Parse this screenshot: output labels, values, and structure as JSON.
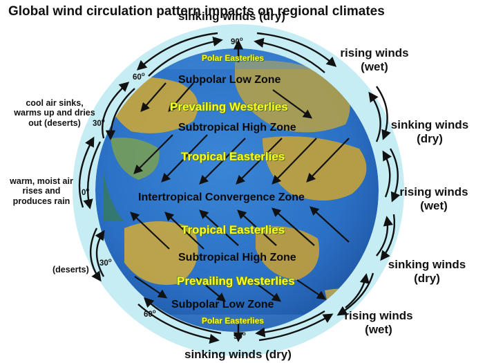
{
  "title": "Global wind circulation pattern impacts on regional climates",
  "latitudes": {
    "top_pole": "90",
    "bottom_pole": "90",
    "north_60": "60",
    "north_30": "30",
    "equator": "0",
    "south_30": "30",
    "south_60": "60",
    "degree_symbol": "o"
  },
  "zones": {
    "subpolar_low_north": "Subpolar Low Zone",
    "subtropical_high_north": "Subtropical High Zone",
    "itcz": "Intertropical Convergence Zone",
    "subtropical_high_south": "Subtropical High Zone",
    "subpolar_low_south": "Subpolar Low Zone"
  },
  "winds": {
    "polar_easterlies_north": "Polar Easterlies",
    "prevailing_westerlies_north": "Prevailing Westerlies",
    "tropical_easterlies_north": "Tropical Easterlies",
    "tropical_easterlies_south": "Tropical Easterlies",
    "prevailing_westerlies_south": "Prevailing Westerlies",
    "polar_easterlies_south": "Polar Easterlies"
  },
  "left_notes": {
    "cool_air": "cool air sinks, warms up and dries out (deserts)",
    "warm_air": "warm, moist air rises and produces rain",
    "deserts": "(deserts)"
  },
  "right_labels": {
    "top": "sinking winds (dry)",
    "r1": "rising winds (wet)",
    "r2": "sinking winds (dry)",
    "r3": "rising winds (wet)",
    "r4": "sinking winds (dry)",
    "r5": "rising winds (wet)",
    "bottom": "sinking winds (dry)"
  },
  "colors": {
    "halo": "#c6ecf4",
    "ocean": "#2a6fc4",
    "land": "#c9a63c",
    "wind_text": "#ffff1a",
    "arrow": "#111111"
  }
}
